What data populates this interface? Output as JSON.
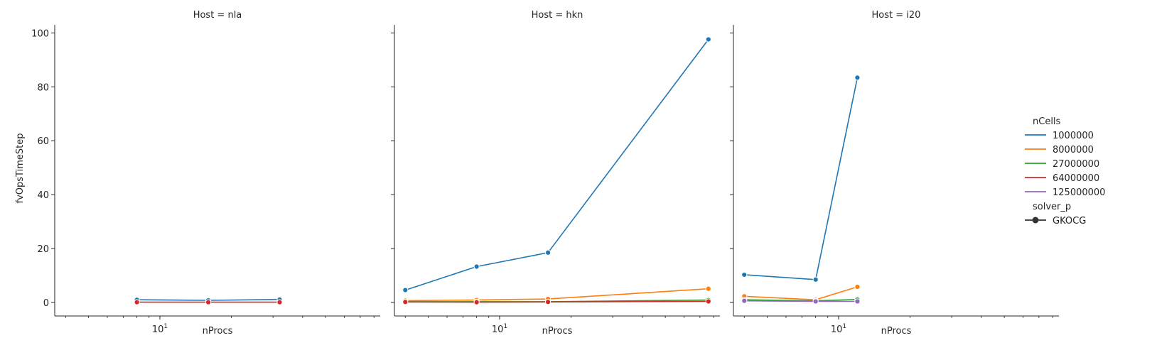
{
  "chart_data": {
    "type": "line",
    "xscale": "log",
    "ylabel": "fvOpsTimeStep",
    "xlabel": "nProcs",
    "ylim": [
      -5,
      103
    ],
    "yticks": [
      0,
      20,
      40,
      60,
      80,
      100
    ],
    "xticks": [
      {
        "value": 10,
        "label": "10",
        "exp": "1"
      }
    ],
    "grid": false,
    "legend": {
      "placement": "right",
      "hue_title": "nCells",
      "style_title": "solver_p",
      "entries": [
        {
          "label": "1000000",
          "color": "#1f77b4"
        },
        {
          "label": "8000000",
          "color": "#ff7f0e"
        },
        {
          "label": "27000000",
          "color": "#2ca02c"
        },
        {
          "label": "64000000",
          "color": "#d62728"
        },
        {
          "label": "125000000",
          "color": "#9467bd"
        }
      ],
      "style_entries": [
        {
          "label": "GKOCG",
          "marker": "circle"
        }
      ]
    },
    "panels": [
      {
        "title": "Host = nla",
        "xlim": [
          3.6,
          85
        ],
        "series": [
          {
            "name": "1000000",
            "color": "#1f77b4",
            "x": [
              8,
              16,
              32
            ],
            "y": [
              1.0,
              0.8,
              1.1
            ]
          },
          {
            "name": "64000000",
            "color": "#d62728",
            "x": [
              8,
              16,
              32
            ],
            "y": [
              0.1,
              0.1,
              0.1
            ]
          }
        ]
      },
      {
        "title": "Host = hkn",
        "xlim": [
          3.6,
          85
        ],
        "series": [
          {
            "name": "1000000",
            "color": "#1f77b4",
            "x": [
              4,
              8,
              16,
              76
            ],
            "y": [
              4.6,
              13.3,
              18.5,
              97.6
            ]
          },
          {
            "name": "8000000",
            "color": "#ff7f0e",
            "x": [
              4,
              8,
              16,
              76
            ],
            "y": [
              0.7,
              0.9,
              1.3,
              5.1
            ]
          },
          {
            "name": "27000000",
            "color": "#2ca02c",
            "x": [
              4,
              8,
              16,
              76
            ],
            "y": [
              0.3,
              0.3,
              0.3,
              0.9
            ]
          },
          {
            "name": "64000000",
            "color": "#d62728",
            "x": [
              4,
              8,
              16,
              76
            ],
            "y": [
              0.2,
              0.1,
              0.2,
              0.4
            ]
          }
        ]
      },
      {
        "title": "Host = i20",
        "xlim": [
          3.6,
          85
        ],
        "series": [
          {
            "name": "1000000",
            "color": "#1f77b4",
            "x": [
              4,
              8,
              12
            ],
            "y": [
              10.3,
              8.5,
              83.4
            ]
          },
          {
            "name": "8000000",
            "color": "#ff7f0e",
            "x": [
              4,
              8,
              12
            ],
            "y": [
              2.3,
              1.0,
              5.8
            ]
          },
          {
            "name": "27000000",
            "color": "#2ca02c",
            "x": [
              4,
              8,
              12
            ],
            "y": [
              1.0,
              0.6,
              1.1
            ]
          },
          {
            "name": "125000000",
            "color": "#9467bd",
            "x": [
              4,
              8,
              12
            ],
            "y": [
              0.6,
              0.4,
              0.4
            ]
          }
        ]
      }
    ]
  }
}
